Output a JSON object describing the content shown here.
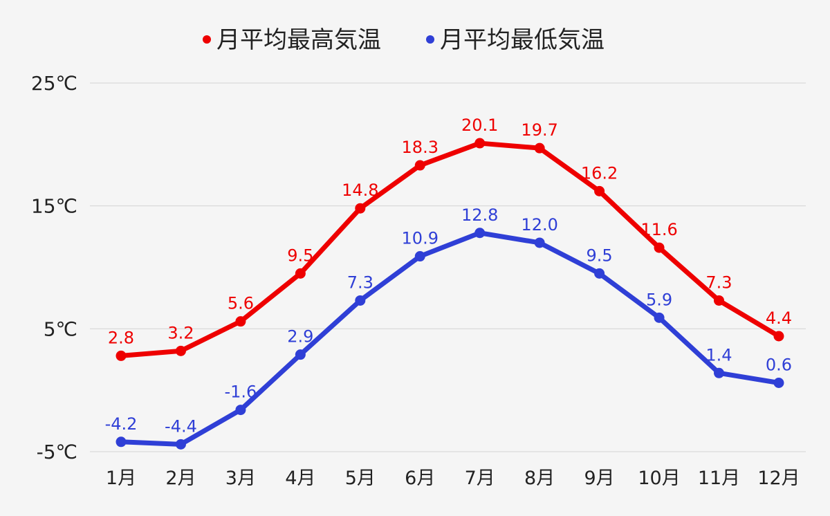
{
  "chart_data": {
    "type": "line",
    "categories": [
      "1月",
      "2月",
      "3月",
      "4月",
      "5月",
      "6月",
      "7月",
      "8月",
      "9月",
      "10月",
      "11月",
      "12月"
    ],
    "y_ticks": [
      25,
      15,
      5,
      -5
    ],
    "y_tick_labels": [
      "25℃",
      "15℃",
      "5℃",
      "-5℃"
    ],
    "ylim": [
      -5,
      25
    ],
    "grid": true,
    "legend_position": "top-center",
    "series": [
      {
        "name": "月平均最高気温",
        "color": "#ee0000",
        "values": [
          2.8,
          3.2,
          5.6,
          9.5,
          14.8,
          18.3,
          20.1,
          19.7,
          16.2,
          11.6,
          7.3,
          4.4
        ],
        "labels": [
          "2.8",
          "3.2",
          "5.6",
          "9.5",
          "14.8",
          "18.3",
          "20.1",
          "19.7",
          "16.2",
          "11.6",
          "7.3",
          "4.4"
        ]
      },
      {
        "name": "月平均最低気温",
        "color": "#2f3fd6",
        "values": [
          -4.2,
          -4.4,
          -1.6,
          2.9,
          7.3,
          10.9,
          12.8,
          12.0,
          9.5,
          5.9,
          1.4,
          0.6
        ],
        "labels": [
          "-4.2",
          "-4.4",
          "-1.6",
          "2.9",
          "7.3",
          "10.9",
          "12.8",
          "12.0",
          "9.5",
          "5.9",
          "1.4",
          "0.6"
        ]
      }
    ]
  }
}
